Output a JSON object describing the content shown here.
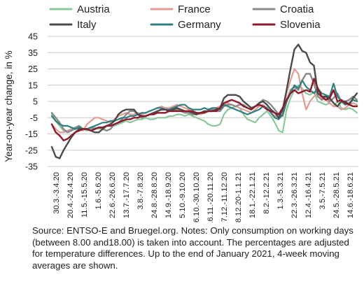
{
  "chart_data": {
    "type": "line",
    "ylabel": "Year-on-year change, in %",
    "ylim": [
      -35,
      45
    ],
    "yticks": [
      45,
      35,
      25,
      15,
      5,
      -5,
      -15,
      -25,
      -35
    ],
    "grid": "horizontal",
    "legend_position": "top",
    "x_tick_labels": [
      "30.3.-3.4.20",
      "20.4.-24.4.20",
      "11.5.-15.5.20",
      "1.6.-5.6.20",
      "22.6.-26.6.20",
      "13.7.-17.7.20",
      "3.8.-7.8.20",
      "24.8.-28.8.20",
      "14.9.-18.9.20",
      "5.10.-9.10.20",
      "26.10.-30.10.20",
      "16.11.-20.11.20",
      "7.12.-11.12.20",
      "28.12.20-1.1.21",
      "18.1.-22.1.21",
      "8.2.-12.2.21",
      "1.3.-5.3.21",
      "22.3.-26.3.21",
      "12.4.-16.4.21",
      "3.5.-7.5.21",
      "24.5.-28.5.21",
      "14.6.-18.6.21"
    ],
    "series": [
      {
        "name": "Austria",
        "color": "#8cc79a",
        "width": 2.2,
        "values": [
          -3,
          -7,
          -10,
          -13,
          -14,
          -13,
          -12,
          -11,
          -12,
          -13,
          -12,
          -11,
          -12,
          -11,
          -10,
          -10,
          -10,
          -9,
          -8,
          -7,
          -8,
          -7,
          -6,
          -6,
          -5,
          -6,
          -6,
          -5,
          -5,
          -5,
          -4,
          -4,
          -3,
          -3,
          -4,
          -3,
          -4,
          -5,
          -6,
          -7,
          -9,
          -10,
          -10,
          -9,
          -3,
          0,
          1,
          2,
          1,
          -3,
          -6,
          -7,
          -8,
          -5,
          -3,
          -1,
          -4,
          -8,
          -13,
          -14,
          0,
          7,
          12,
          15,
          13,
          10,
          9,
          11,
          5,
          4,
          3,
          4,
          2,
          5,
          1,
          0,
          1,
          0,
          -2
        ]
      },
      {
        "name": "France",
        "color": "#e39a92",
        "width": 2.2,
        "values": [
          -9,
          -12,
          -14,
          -14,
          -13,
          -12,
          -11,
          -12,
          -13,
          -9,
          -7,
          -5,
          -5,
          -6,
          -7,
          -8,
          -6,
          -4,
          -3,
          -2,
          -3,
          -3,
          -2,
          -3,
          -2,
          -1,
          0,
          1,
          2,
          1,
          1,
          2,
          3,
          2,
          1,
          0,
          -1,
          -2,
          -3,
          -2,
          -1,
          0,
          1,
          2,
          3,
          4,
          3,
          2,
          1,
          0,
          -1,
          -2,
          0,
          2,
          3,
          1,
          -2,
          -4,
          -5,
          -3,
          10,
          18,
          25,
          22,
          10,
          0,
          5,
          8,
          10,
          7,
          6,
          4,
          2,
          2,
          0,
          1,
          3,
          4,
          3
        ]
      },
      {
        "name": "Croatia",
        "color": "#8a8a8a",
        "width": 2.4,
        "values": [
          -2,
          -5,
          -8,
          -12,
          -14,
          -13,
          -11,
          -10,
          -12,
          -12,
          -11,
          -12,
          -11,
          -12,
          -13,
          -12,
          -9,
          -8,
          -6,
          -3,
          -1,
          -1,
          -3,
          -5,
          -4,
          -3,
          -2,
          -1,
          0,
          0,
          -1,
          -1,
          0,
          -1,
          -2,
          -2,
          -3,
          -3,
          -2,
          -1,
          -1,
          0,
          -1,
          -1,
          2,
          3,
          3,
          2,
          3,
          3,
          1,
          0,
          2,
          4,
          6,
          5,
          3,
          0,
          -3,
          -4,
          5,
          12,
          14,
          12,
          18,
          22,
          22,
          16,
          8,
          6,
          8,
          5,
          7,
          10,
          5,
          5,
          6,
          8,
          6
        ]
      },
      {
        "name": "Italy",
        "color": "#4a4a4a",
        "width": 2.4,
        "values": [
          -23,
          -29,
          -30,
          -25,
          -21,
          -17,
          -14,
          -12,
          -12,
          -12,
          -13,
          -14,
          -14,
          -12,
          -10,
          -9,
          -7,
          -3,
          -1,
          0,
          0,
          0,
          -3,
          -4,
          -4,
          -3,
          -2,
          -1,
          0,
          0,
          -1,
          0,
          1,
          0,
          -1,
          -1,
          -2,
          -3,
          -2,
          -1,
          -1,
          -1,
          0,
          1,
          7,
          9,
          9,
          9,
          8,
          5,
          3,
          1,
          2,
          4,
          5,
          3,
          0,
          -2,
          -5,
          0,
          12,
          25,
          37,
          40,
          36,
          35,
          29,
          27,
          10,
          8,
          8,
          7,
          4,
          2,
          5,
          5,
          3,
          7,
          10
        ]
      },
      {
        "name": "Germany",
        "color": "#2f7f82",
        "width": 2.2,
        "values": [
          -4,
          -7,
          -9,
          -10,
          -10,
          -11,
          -12,
          -11,
          -12,
          -12,
          -11,
          -10,
          -9,
          -8,
          -8,
          -7,
          -7,
          -6,
          -5,
          -5,
          -4,
          -4,
          -3,
          -2,
          -2,
          -1,
          0,
          1,
          1,
          0,
          0,
          1,
          2,
          3,
          3,
          1,
          0,
          0,
          0,
          1,
          0,
          1,
          1,
          0,
          3,
          2,
          1,
          0,
          -1,
          -2,
          -3,
          -2,
          -1,
          0,
          2,
          1,
          -2,
          -5,
          -6,
          -3,
          5,
          10,
          15,
          13,
          18,
          14,
          12,
          10,
          13,
          10,
          9,
          8,
          16,
          8,
          5,
          3,
          4,
          6,
          5
        ]
      },
      {
        "name": "Slovenia",
        "color": "#8c1b2e",
        "width": 2.4,
        "values": [
          -9,
          -14,
          -16,
          -19,
          -18,
          -16,
          -14,
          -13,
          -12,
          -12,
          -13,
          -12,
          -11,
          -11,
          -10,
          -10,
          -9,
          -8,
          -7,
          -6,
          -6,
          -5,
          -5,
          -4,
          -4,
          -3,
          -3,
          -2,
          -2,
          -2,
          -1,
          -1,
          -1,
          -1,
          -1,
          -1,
          -1,
          -2,
          -2,
          -2,
          -1,
          -1,
          -1,
          1,
          4,
          5,
          6,
          5,
          4,
          2,
          1,
          0,
          2,
          3,
          2,
          0,
          -1,
          -2,
          -3,
          1,
          6,
          10,
          12,
          10,
          11,
          12,
          11,
          19,
          13,
          8,
          6,
          7,
          12,
          5,
          6,
          4,
          3,
          2,
          2
        ]
      }
    ]
  },
  "note": {
    "text": "Source: ENTSO-E and Bruegel.org. Notes: Only consumption on working days (between 8.00 and18.00) is taken into account. The percentages are adjusted for temperature differences. Up to the end of January 2021, 4-week moving averages are shown."
  }
}
